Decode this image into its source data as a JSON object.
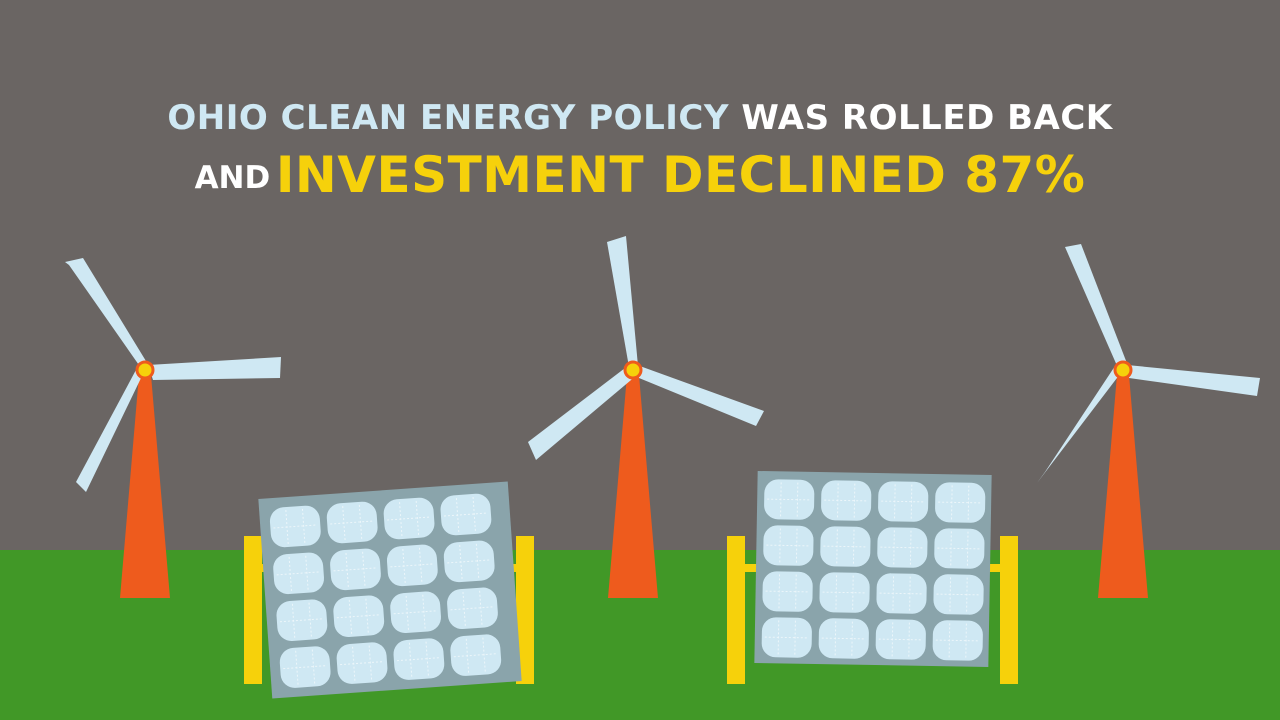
{
  "headline": {
    "line1_emphasis": "OHIO CLEAN ENERGY POLICY",
    "line1_rest": "WAS ROLLED BACK",
    "line2_lead": "AND",
    "line2_emphasis": "INVESTMENT DECLINED 87%"
  },
  "colors": {
    "sky": "#6a6563",
    "ground": "#419827",
    "turbine_tower": "#ee5b1d",
    "turbine_blade": "#cfe8f3",
    "turbine_hub": "#f6d10b",
    "solar_frame": "#f6d10b",
    "solar_panel": "#8aa4ab",
    "solar_cell": "#cfe8f3",
    "headline_blue": "#cfe8f3",
    "headline_yellow": "#f6d10b",
    "headline_white": "#ffffff"
  },
  "scene": {
    "turbines": [
      "wind-turbine-left",
      "wind-turbine-center",
      "wind-turbine-right"
    ],
    "solar_panels": [
      "solar-panel-left",
      "solar-panel-right"
    ]
  }
}
